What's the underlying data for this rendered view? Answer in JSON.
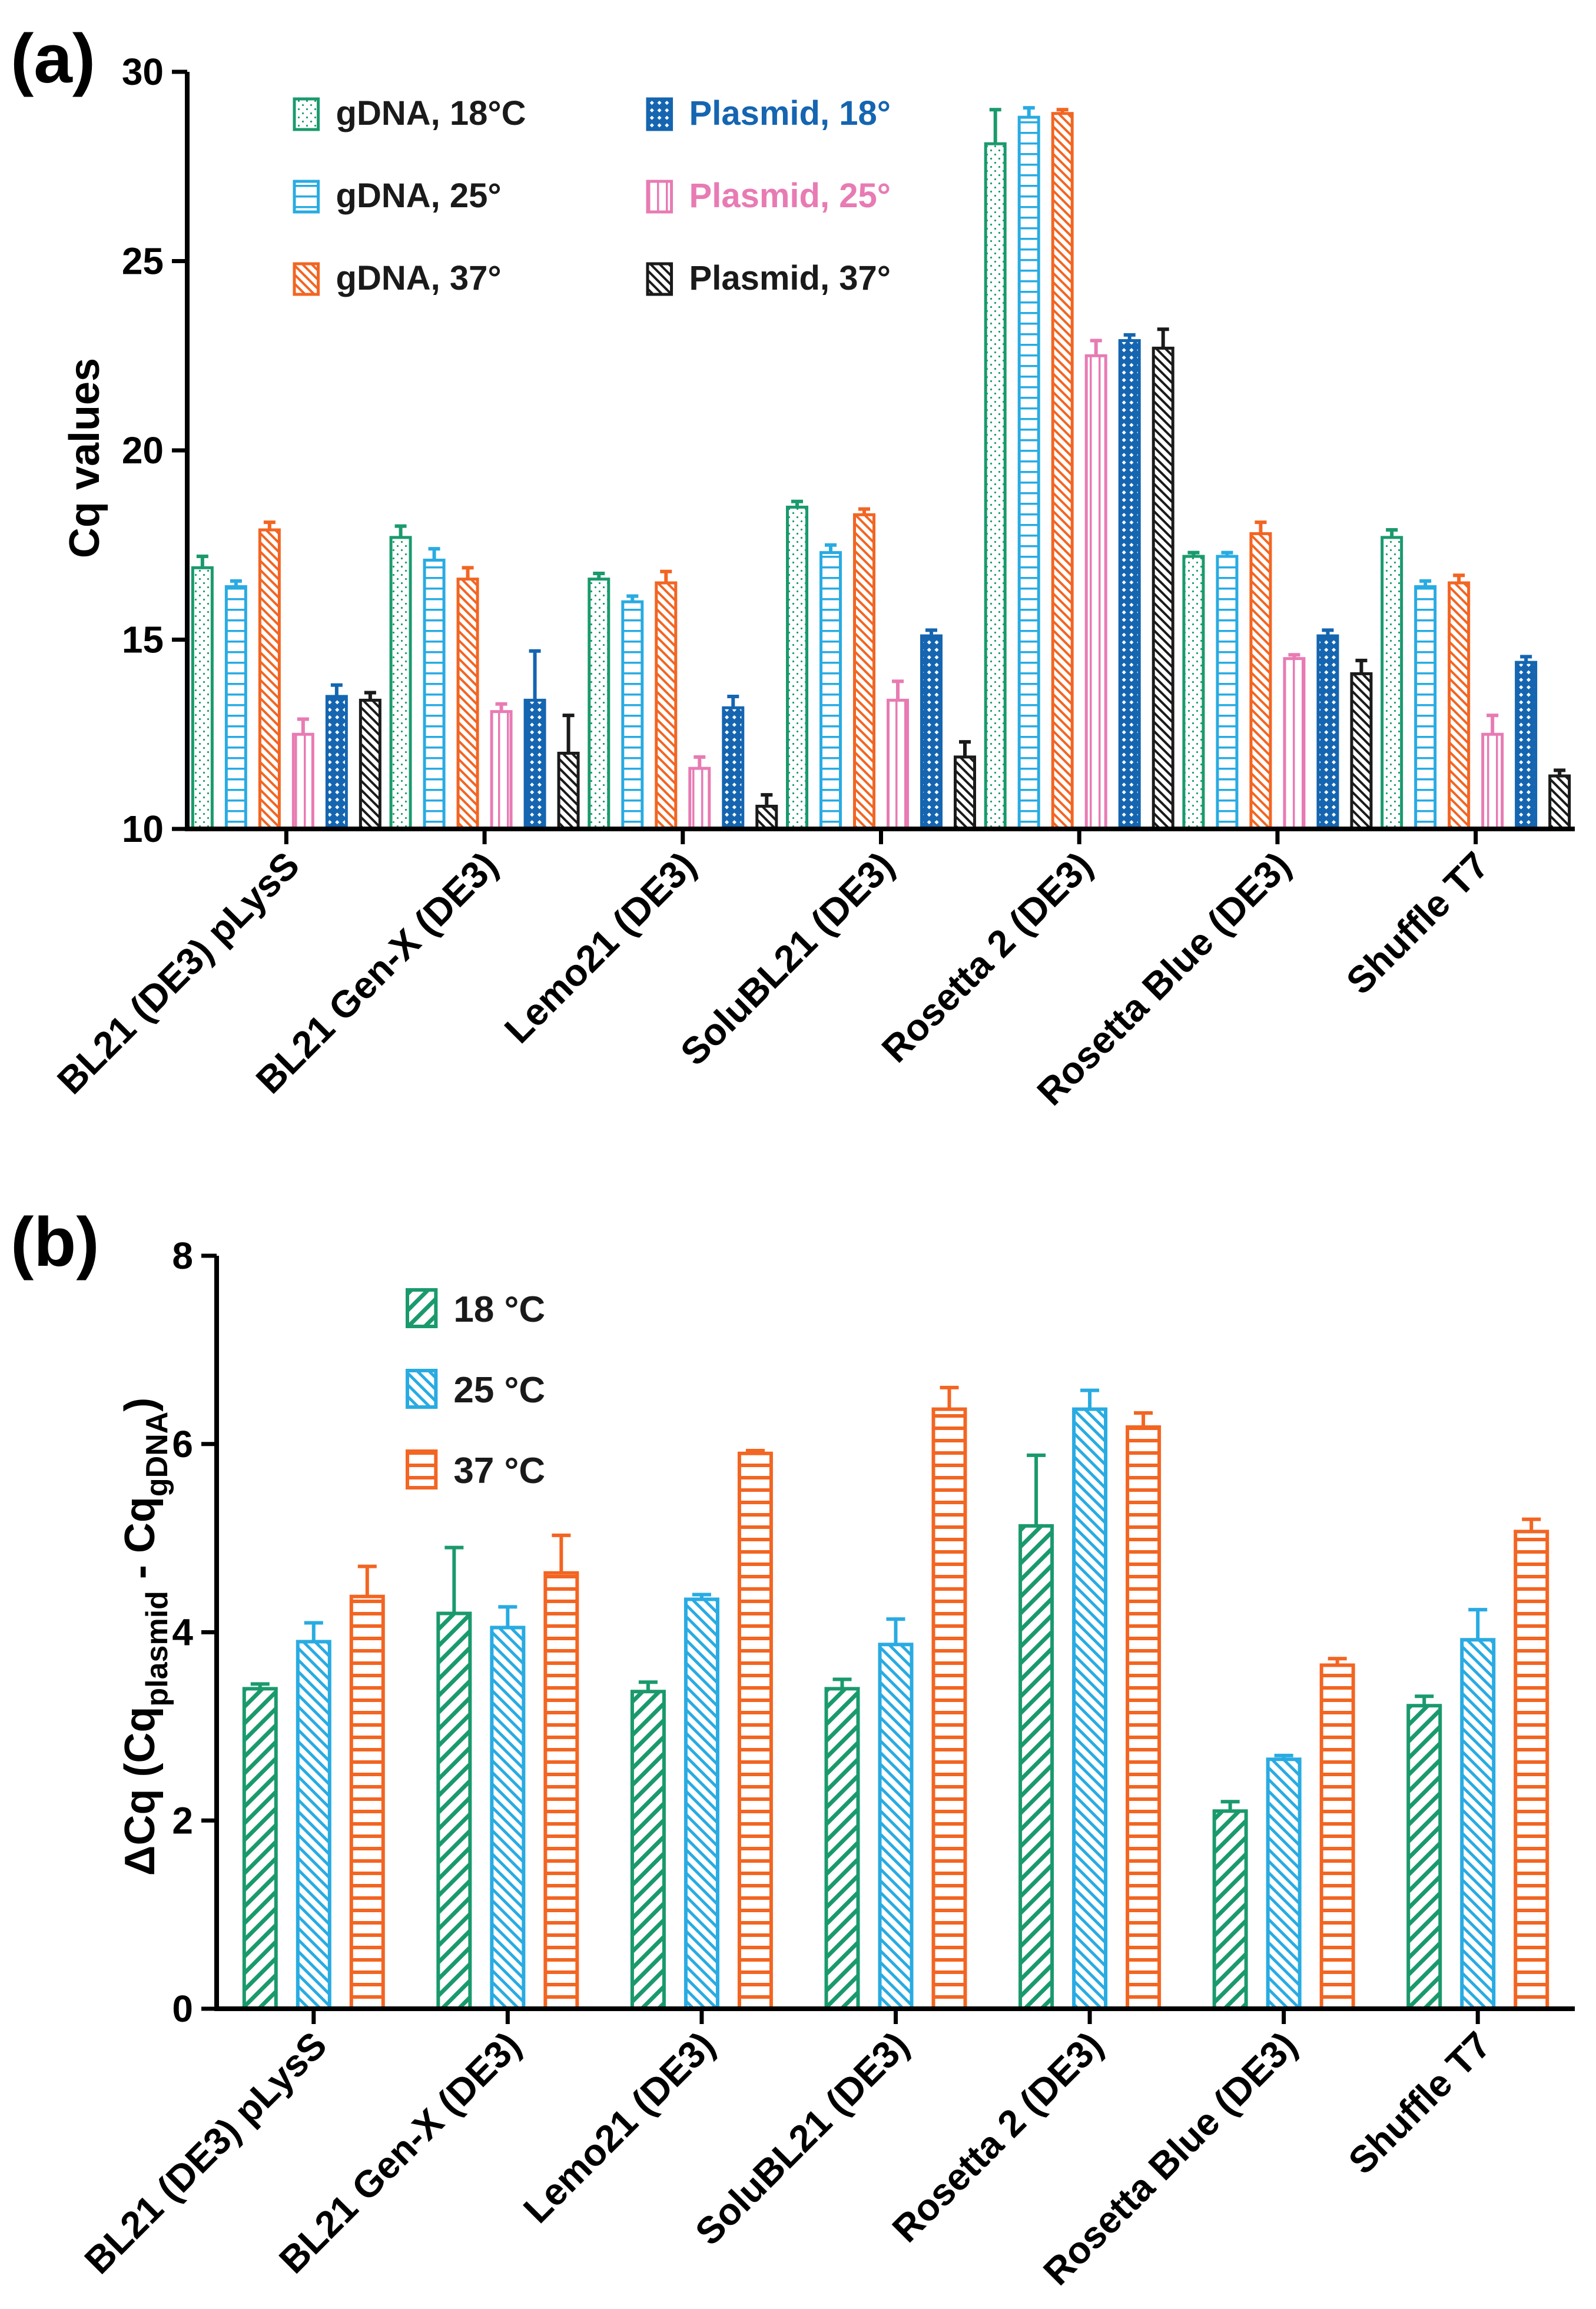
{
  "chart_data": [
    {
      "panel_label": "(a)",
      "type": "bar",
      "ylabel": "Cq values",
      "ylim": [
        10,
        30
      ],
      "yticks": [
        "10",
        "15",
        "20",
        "25",
        "30"
      ],
      "categories": [
        "BL21 (DE3) pLysS",
        "BL21 Gen-X (DE3)",
        "Lemo21 (DE3)",
        "SoluBL21 (DE3)",
        "Rosetta 2 (DE3)",
        "Rosetta Blue (DE3)",
        "Shuffle T7"
      ],
      "series": [
        {
          "name": "gDNA, 18°C",
          "color": "#1a9a6c",
          "pattern": "dots",
          "values": [
            16.9,
            17.7,
            16.6,
            18.5,
            28.1,
            17.2,
            17.7
          ],
          "errors": [
            0.3,
            0.3,
            0.15,
            0.15,
            0.9,
            0.1,
            0.2
          ]
        },
        {
          "name": "gDNA, 25°",
          "color": "#29abe2",
          "pattern": "hlines",
          "values": [
            16.4,
            17.1,
            16.0,
            17.3,
            28.8,
            17.2,
            16.4
          ],
          "errors": [
            0.15,
            0.3,
            0.15,
            0.2,
            0.25,
            0.1,
            0.15
          ]
        },
        {
          "name": "gDNA, 37°",
          "color": "#f26522",
          "pattern": "diag",
          "values": [
            17.9,
            16.6,
            16.5,
            18.3,
            28.9,
            17.8,
            16.5
          ],
          "errors": [
            0.2,
            0.3,
            0.3,
            0.15,
            0.1,
            0.3,
            0.2
          ]
        },
        {
          "name": "Plasmid, 25°",
          "color": "#e87bb3",
          "pattern": "vlines",
          "values": [
            12.5,
            13.1,
            11.6,
            13.4,
            22.5,
            14.5,
            12.5
          ],
          "errors": [
            0.4,
            0.2,
            0.3,
            0.5,
            0.4,
            0.1,
            0.5
          ]
        },
        {
          "name": "Plasmid, 18°",
          "color": "#1565b0",
          "pattern": "check",
          "values": [
            13.5,
            13.4,
            13.2,
            15.1,
            22.9,
            15.1,
            14.4
          ],
          "errors": [
            0.3,
            1.3,
            0.3,
            0.15,
            0.15,
            0.15,
            0.15
          ]
        },
        {
          "name": "Plasmid, 37°",
          "color": "#1a1a1a",
          "pattern": "diag",
          "values": [
            13.4,
            12.0,
            10.6,
            11.9,
            22.7,
            14.1,
            11.4
          ],
          "errors": [
            0.2,
            1.0,
            0.3,
            0.4,
            0.5,
            0.35,
            0.15
          ]
        }
      ],
      "legend": [
        {
          "name": "gDNA, 18°C",
          "series": 0,
          "text_color": "#1a1a1a"
        },
        {
          "name": "Plasmid, 18°",
          "series": 4,
          "text_color": "#1565b0"
        },
        {
          "name": "gDNA, 25°",
          "series": 1,
          "text_color": "#1a1a1a"
        },
        {
          "name": "Plasmid, 25°",
          "series": 3,
          "text_color": "#e87bb3"
        },
        {
          "name": "gDNA, 37°",
          "series": 2,
          "text_color": "#1a1a1a"
        },
        {
          "name": "Plasmid, 37°",
          "series": 5,
          "text_color": "#1a1a1a"
        }
      ],
      "legend_position": "top-left"
    },
    {
      "panel_label": "(b)",
      "type": "bar",
      "ylabel": "ΔCq (Cq",
      "ylabel_sub1": "plasmid",
      "ylabel_mid": " - Cq",
      "ylabel_sub2": "gDNA",
      "ylabel_end": ")",
      "ylim": [
        0,
        8
      ],
      "yticks": [
        "0",
        "2",
        "4",
        "6",
        "8"
      ],
      "categories": [
        "BL21 (DE3) pLysS",
        "BL21 Gen-X (DE3)",
        "Lemo21 (DE3)",
        "SoluBL21 (DE3)",
        "Rosetta 2 (DE3)",
        "Rosetta Blue (DE3)",
        "Shuffle T7"
      ],
      "series": [
        {
          "name": "18 °C",
          "color": "#1a9a6c",
          "pattern": "diagback",
          "values": [
            3.4,
            4.2,
            3.37,
            3.4,
            5.13,
            2.1,
            3.22
          ],
          "errors": [
            0.05,
            0.7,
            0.1,
            0.1,
            0.75,
            0.1,
            0.1
          ]
        },
        {
          "name": "25 °C",
          "color": "#29abe2",
          "pattern": "diagdense",
          "values": [
            3.9,
            4.05,
            4.35,
            3.87,
            6.37,
            2.65,
            3.92
          ],
          "errors": [
            0.2,
            0.22,
            0.05,
            0.27,
            0.2,
            0.04,
            0.32
          ]
        },
        {
          "name": "37 °C",
          "color": "#f26522",
          "pattern": "hthick",
          "values": [
            4.38,
            4.63,
            5.9,
            6.37,
            6.18,
            3.65,
            5.07
          ],
          "errors": [
            0.32,
            0.4,
            0.03,
            0.23,
            0.15,
            0.07,
            0.13
          ]
        }
      ],
      "legend": [
        {
          "name": "18 °C",
          "series": 0,
          "text_color": "#1a1a1a"
        },
        {
          "name": "25 °C",
          "series": 1,
          "text_color": "#1a1a1a"
        },
        {
          "name": "37 °C",
          "series": 2,
          "text_color": "#1a1a1a"
        }
      ],
      "legend_position": "top-left"
    }
  ]
}
